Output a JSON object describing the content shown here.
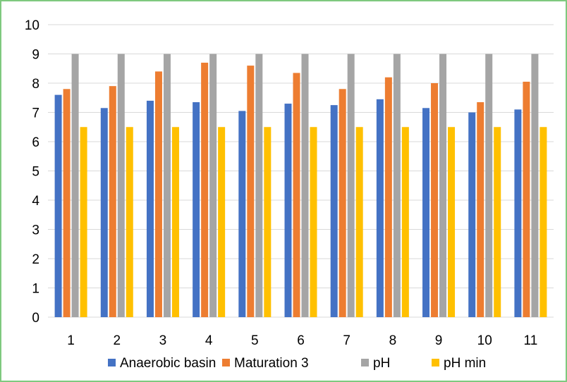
{
  "chart_data": {
    "type": "bar",
    "categories": [
      "1",
      "2",
      "3",
      "4",
      "5",
      "6",
      "7",
      "8",
      "9",
      "10",
      "11"
    ],
    "series": [
      {
        "name": "Anaerobic basin",
        "color": "#4472c4",
        "values": [
          7.6,
          7.15,
          7.4,
          7.35,
          7.05,
          7.3,
          7.25,
          7.45,
          7.15,
          7.0,
          7.1
        ]
      },
      {
        "name": "Maturation 3",
        "color": "#ed7d31",
        "values": [
          7.8,
          7.9,
          8.4,
          8.7,
          8.6,
          8.35,
          7.8,
          8.2,
          8.0,
          7.35,
          8.05
        ]
      },
      {
        "name": "pH",
        "color": "#a5a5a5",
        "values": [
          9,
          9,
          9,
          9,
          9,
          9,
          9,
          9,
          9,
          9,
          9
        ]
      },
      {
        "name": "pH min",
        "color": "#ffc000",
        "values": [
          6.5,
          6.5,
          6.5,
          6.5,
          6.5,
          6.5,
          6.5,
          6.5,
          6.5,
          6.5,
          6.5
        ]
      }
    ],
    "ylim": [
      0,
      10
    ],
    "yticks": [
      "0",
      "1",
      "2",
      "3",
      "4",
      "5",
      "6",
      "7",
      "8",
      "9",
      "10"
    ],
    "grid": true,
    "legend_position": "bottom"
  }
}
